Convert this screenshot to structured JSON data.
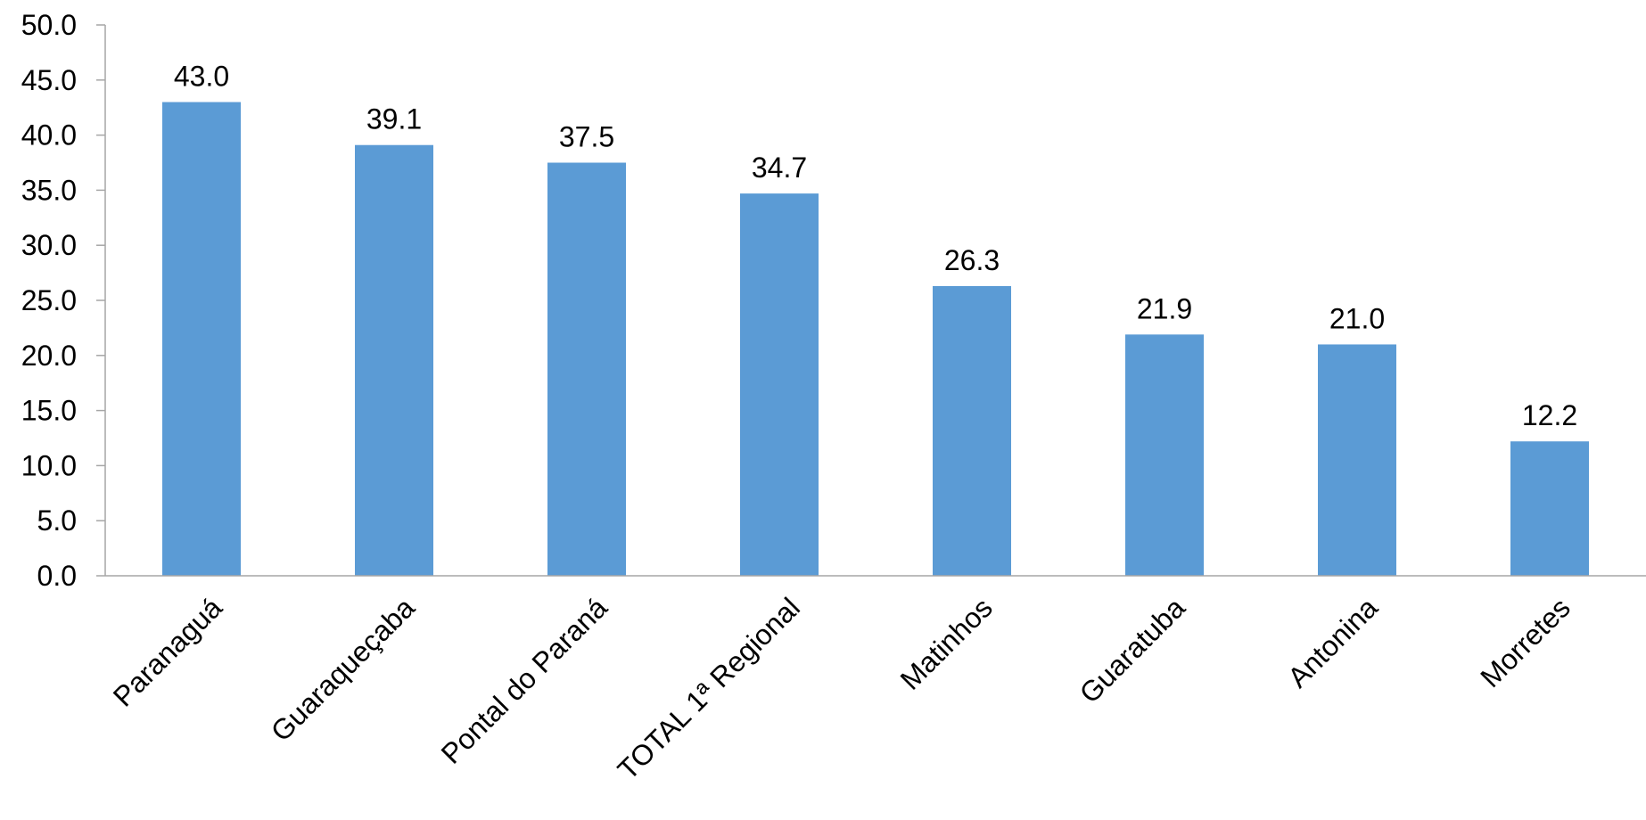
{
  "chart_data": {
    "type": "bar",
    "title": "",
    "xlabel": "",
    "ylabel": "",
    "categories": [
      "Paranaguá",
      "Guaraqueçaba",
      "Pontal do Paraná",
      "TOTAL 1ª Regional",
      "Matinhos",
      "Guaratuba",
      "Antonina",
      "Morretes"
    ],
    "values": [
      43.0,
      39.1,
      37.5,
      34.7,
      26.3,
      21.9,
      21.0,
      12.2
    ],
    "value_labels": [
      "43.0",
      "39.1",
      "37.5",
      "34.7",
      "26.3",
      "21.9",
      "21.0",
      "12.2"
    ],
    "ylim": [
      0,
      50
    ],
    "yticks": [
      "0.0",
      "5.0",
      "10.0",
      "15.0",
      "20.0",
      "25.0",
      "30.0",
      "35.0",
      "40.0",
      "45.0",
      "50.0"
    ],
    "grid": false,
    "legend": "none",
    "bar_color": "#5B9BD5",
    "axis_color": "#A6A6A6"
  }
}
